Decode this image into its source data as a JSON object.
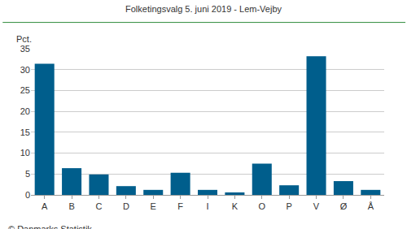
{
  "chart_data": {
    "type": "bar",
    "title": "Folketingsvalg 5. juni 2019 - Lem-Vejby",
    "ylabel": "Pct.",
    "annotations": [
      "© Danmarks Statistik"
    ],
    "categories": [
      "A",
      "B",
      "C",
      "D",
      "E",
      "F",
      "I",
      "K",
      "O",
      "P",
      "V",
      "Ø",
      "Å"
    ],
    "values": [
      31.4,
      6.4,
      4.9,
      2.1,
      1.2,
      5.3,
      1.2,
      0.6,
      7.5,
      2.3,
      33.2,
      3.3,
      1.2
    ],
    "color": "#005e8c",
    "ylim": [
      0,
      35
    ],
    "yticks": [
      0,
      5,
      10,
      15,
      20,
      25,
      30,
      35
    ],
    "grid": true
  }
}
